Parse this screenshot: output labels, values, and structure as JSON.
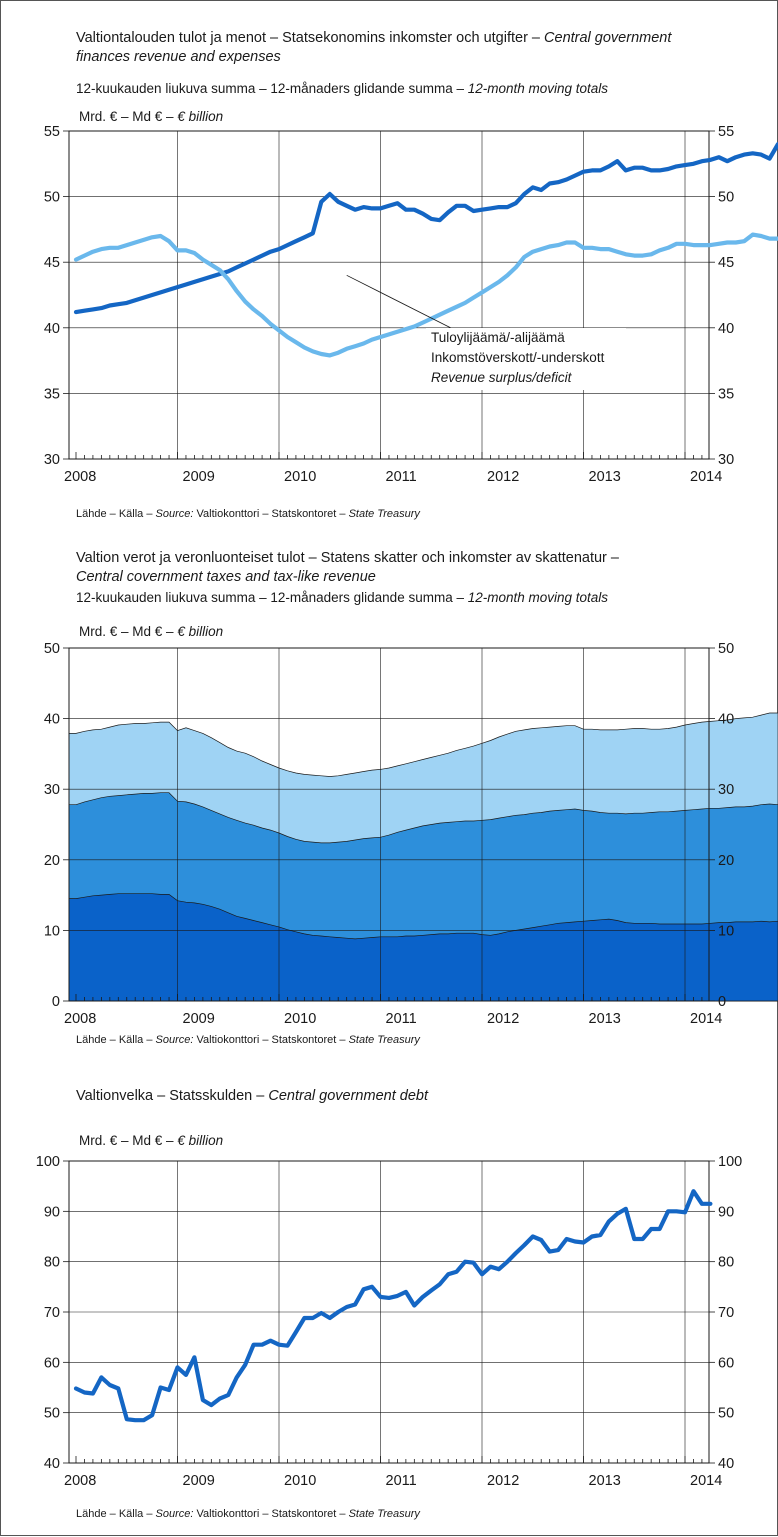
{
  "charts": [
    {
      "title": "Valtiontalouden tulot ja menot – Statsekonomins inkomster och utgifter –",
      "title_en_1": "Central government",
      "title_en_2": "finances revenue and expenses",
      "subtitle": "12-kuukauden liukuva summa – 12-månaders glidande summa –",
      "subtitle_en": "12-month moving totals",
      "unit": "Mrd. € – Md € –",
      "unit_en": "€ billion",
      "annotation_1": "Tuloylijäämä/-alijäämä",
      "annotation_2": "Inkomstöverskott/-underskott",
      "annotation_3": "Revenue surplus/deficit",
      "source": "Lähde – Källa –",
      "source_label": "Source:",
      "source_names": "Valtiokonttori – Statskontoret –",
      "source_en": "State Treasury"
    },
    {
      "title": "Valtion verot ja veronluonteiset tulot – Statens skatter och inkomster av skattenatur –",
      "title_en": "Central covernment taxes and tax-like revenue",
      "subtitle": "12-kuukauden liukuva summa – 12-månaders glidande summa –",
      "subtitle_en": "12-month moving totals",
      "unit": "Mrd. € – Md € –",
      "unit_en": "€ billion",
      "source": "Lähde – Källa –",
      "source_label": "Source:",
      "source_names": "Valtiokonttori – Statskontoret –",
      "source_en": "State Treasury"
    },
    {
      "title": "Valtionvelka – Statsskulden –",
      "title_en": "Central government debt",
      "unit": "Mrd. € – Md € –",
      "unit_en": "€ billion",
      "source": "Lähde – Källa –",
      "source_label": "Source:",
      "source_names": "Valtiokonttori – Statskontoret –",
      "source_en": "State Treasury"
    }
  ],
  "colors": {
    "dark_blue": "#1466c4",
    "light_blue": "#6ab8ec",
    "area_bottom": "#0a62c9",
    "area_middle": "#2d8fdb",
    "area_top": "#9fd3f4",
    "grid": "#1a1a1a"
  },
  "chart_data": [
    {
      "type": "line",
      "x_start": "2008-01",
      "x_step": "month",
      "x_ticks": [
        "2008",
        "2009",
        "2010",
        "2011",
        "2012",
        "2013",
        "2014"
      ],
      "y_ticks": [
        30,
        35,
        40,
        45,
        50,
        55
      ],
      "ylim": [
        30,
        55
      ],
      "grid": true,
      "series": [
        {
          "color": "dark_blue",
          "values": [
            41.2,
            41.3,
            41.4,
            41.5,
            41.7,
            41.8,
            41.9,
            42.1,
            42.3,
            42.5,
            42.7,
            42.9,
            43.1,
            43.3,
            43.5,
            43.7,
            43.9,
            44.1,
            44.3,
            44.6,
            44.9,
            45.2,
            45.5,
            45.8,
            46.0,
            46.3,
            46.6,
            46.9,
            47.2,
            49.6,
            50.2,
            49.6,
            49.3,
            49.0,
            49.2,
            49.1,
            49.1,
            49.3,
            49.5,
            49.0,
            49.0,
            48.7,
            48.3,
            48.2,
            48.8,
            49.3,
            49.3,
            48.9,
            49.0,
            49.1,
            49.2,
            49.2,
            49.5,
            50.2,
            50.7,
            50.5,
            51.0,
            51.1,
            51.3,
            51.6,
            51.9,
            52.0,
            52.0,
            52.3,
            52.7,
            52.0,
            52.2,
            52.2,
            52.0,
            52.0,
            52.1,
            52.3,
            52.4,
            52.5,
            52.7,
            52.8,
            53.0,
            52.7,
            53.0,
            53.2,
            53.3,
            53.2,
            52.9,
            54.0
          ]
        },
        {
          "color": "light_blue",
          "values": [
            45.2,
            45.5,
            45.8,
            46.0,
            46.1,
            46.1,
            46.3,
            46.5,
            46.7,
            46.9,
            47.0,
            46.6,
            45.9,
            45.9,
            45.7,
            45.2,
            44.8,
            44.4,
            43.7,
            42.8,
            42.0,
            41.4,
            40.9,
            40.3,
            39.8,
            39.3,
            38.9,
            38.5,
            38.2,
            38.0,
            37.9,
            38.1,
            38.4,
            38.6,
            38.8,
            39.1,
            39.3,
            39.5,
            39.7,
            39.9,
            40.1,
            40.4,
            40.7,
            41.0,
            41.3,
            41.6,
            41.9,
            42.3,
            42.7,
            43.1,
            43.5,
            44.0,
            44.6,
            45.4,
            45.8,
            46.0,
            46.2,
            46.3,
            46.5,
            46.5,
            46.1,
            46.1,
            46.0,
            46.0,
            45.8,
            45.6,
            45.5,
            45.5,
            45.6,
            45.9,
            46.1,
            46.4,
            46.4,
            46.3,
            46.3,
            46.3,
            46.4,
            46.5,
            46.5,
            46.6,
            47.1,
            47.0,
            46.8,
            46.8
          ]
        }
      ],
      "annotation_points_to": {
        "x": "2010-09",
        "y": 44
      }
    },
    {
      "type": "area",
      "x_start": "2008-01",
      "x_step": "month",
      "x_ticks": [
        "2008",
        "2009",
        "2010",
        "2011",
        "2012",
        "2013",
        "2014"
      ],
      "y_ticks": [
        0,
        10,
        20,
        30,
        40,
        50
      ],
      "ylim": [
        0,
        50
      ],
      "grid": true,
      "stacked": true,
      "series": [
        {
          "color": "area_bottom",
          "values": [
            14.5,
            14.7,
            14.9,
            15.0,
            15.1,
            15.2,
            15.2,
            15.2,
            15.2,
            15.2,
            15.1,
            15.1,
            14.2,
            14.0,
            13.9,
            13.7,
            13.4,
            13.0,
            12.5,
            12.0,
            11.7,
            11.4,
            11.1,
            10.8,
            10.5,
            10.1,
            9.8,
            9.5,
            9.3,
            9.2,
            9.1,
            9.0,
            8.9,
            8.8,
            8.9,
            9.0,
            9.1,
            9.1,
            9.1,
            9.2,
            9.2,
            9.3,
            9.4,
            9.5,
            9.5,
            9.6,
            9.6,
            9.6,
            9.4,
            9.3,
            9.5,
            9.8,
            10.0,
            10.2,
            10.4,
            10.6,
            10.8,
            11.0,
            11.1,
            11.2,
            11.3,
            11.4,
            11.5,
            11.6,
            11.4,
            11.1,
            11.0,
            11.0,
            11.0,
            10.9,
            10.9,
            10.9,
            10.9,
            10.9,
            10.9,
            11.0,
            11.1,
            11.1,
            11.2,
            11.2,
            11.2,
            11.3,
            11.2,
            11.3
          ]
        },
        {
          "color": "area_middle",
          "values": [
            27.8,
            28.2,
            28.5,
            28.8,
            29.0,
            29.1,
            29.2,
            29.3,
            29.4,
            29.4,
            29.5,
            29.5,
            28.3,
            28.2,
            27.9,
            27.5,
            27.0,
            26.5,
            26.0,
            25.6,
            25.2,
            24.9,
            24.5,
            24.2,
            23.8,
            23.3,
            22.9,
            22.6,
            22.5,
            22.4,
            22.4,
            22.5,
            22.6,
            22.8,
            23.0,
            23.1,
            23.2,
            23.5,
            23.9,
            24.2,
            24.5,
            24.8,
            25.0,
            25.2,
            25.3,
            25.4,
            25.5,
            25.5,
            25.6,
            25.7,
            25.9,
            26.1,
            26.3,
            26.4,
            26.6,
            26.7,
            26.9,
            27.0,
            27.1,
            27.2,
            27.0,
            26.9,
            26.7,
            26.6,
            26.6,
            26.5,
            26.6,
            26.6,
            26.7,
            26.8,
            26.8,
            26.9,
            27.0,
            27.1,
            27.2,
            27.3,
            27.3,
            27.4,
            27.5,
            27.5,
            27.6,
            27.8,
            27.9,
            27.8
          ]
        },
        {
          "color": "area_top",
          "values": [
            37.9,
            38.2,
            38.4,
            38.5,
            38.8,
            39.1,
            39.2,
            39.3,
            39.3,
            39.4,
            39.5,
            39.5,
            38.3,
            38.7,
            38.3,
            37.9,
            37.3,
            36.6,
            35.9,
            35.4,
            35.1,
            34.6,
            34.0,
            33.5,
            33.0,
            32.6,
            32.3,
            32.1,
            32.0,
            31.9,
            31.8,
            31.9,
            32.1,
            32.3,
            32.5,
            32.7,
            32.8,
            33.0,
            33.3,
            33.6,
            33.9,
            34.2,
            34.5,
            34.8,
            35.1,
            35.5,
            35.8,
            36.1,
            36.5,
            36.9,
            37.4,
            37.8,
            38.2,
            38.4,
            38.6,
            38.7,
            38.8,
            38.9,
            39.0,
            39.0,
            38.5,
            38.5,
            38.4,
            38.4,
            38.4,
            38.5,
            38.6,
            38.6,
            38.5,
            38.5,
            38.6,
            38.8,
            39.1,
            39.3,
            39.5,
            39.6,
            39.7,
            39.8,
            40.0,
            40.1,
            40.2,
            40.5,
            40.8,
            40.8
          ]
        }
      ]
    },
    {
      "type": "line",
      "x_start": "2008-01",
      "x_step": "month",
      "x_ticks": [
        "2008",
        "2009",
        "2010",
        "2011",
        "2012",
        "2013",
        "2014"
      ],
      "y_ticks": [
        40,
        50,
        60,
        70,
        80,
        90,
        100
      ],
      "ylim": [
        40,
        100
      ],
      "grid": true,
      "series": [
        {
          "color": "dark_blue",
          "values": [
            54.8,
            54.0,
            53.8,
            57.0,
            55.5,
            54.8,
            48.7,
            48.5,
            48.5,
            49.5,
            55.0,
            54.5,
            59.0,
            57.5,
            61.0,
            52.5,
            51.5,
            52.8,
            53.5,
            57.0,
            59.5,
            63.5,
            63.5,
            64.3,
            63.5,
            63.3,
            66.0,
            68.8,
            68.8,
            69.8,
            68.8,
            70.0,
            71.0,
            71.5,
            74.5,
            75.0,
            73.0,
            72.8,
            73.2,
            74.0,
            71.3,
            73.0,
            74.3,
            75.5,
            77.5,
            78.0,
            80.0,
            79.8,
            77.5,
            79.0,
            78.5,
            80.0,
            81.7,
            83.3,
            85.0,
            84.3,
            82.0,
            82.3,
            84.5,
            84.0,
            83.8,
            85.0,
            85.3,
            88.0,
            89.5,
            90.5,
            84.5,
            84.5,
            86.5,
            86.5,
            90.0,
            90.0,
            89.8,
            94.0,
            91.5,
            91.5
          ]
        }
      ]
    }
  ]
}
